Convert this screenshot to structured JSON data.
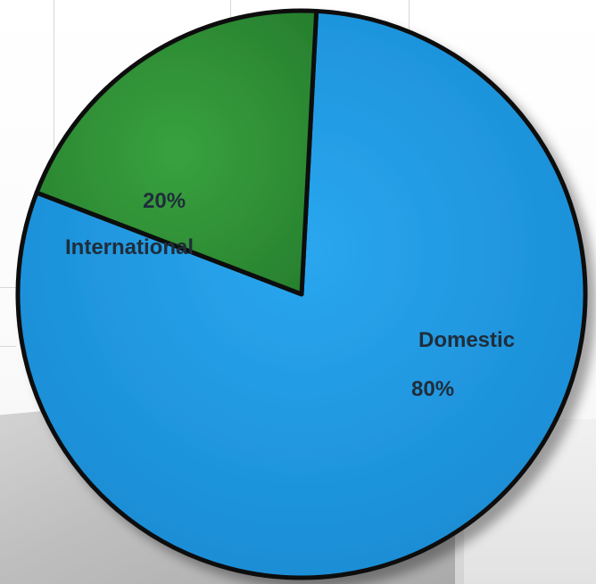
{
  "chart_data": {
    "type": "pie",
    "title": "",
    "slices": [
      {
        "label": "Domestic",
        "value": 80,
        "percent_label": "80%",
        "color": "#1f9be3"
      },
      {
        "label": "International",
        "value": 20,
        "percent_label": "20%",
        "color": "#2d8f35"
      }
    ],
    "start_angle_deg": -87,
    "edge_color": "#111111",
    "legend": "none"
  }
}
